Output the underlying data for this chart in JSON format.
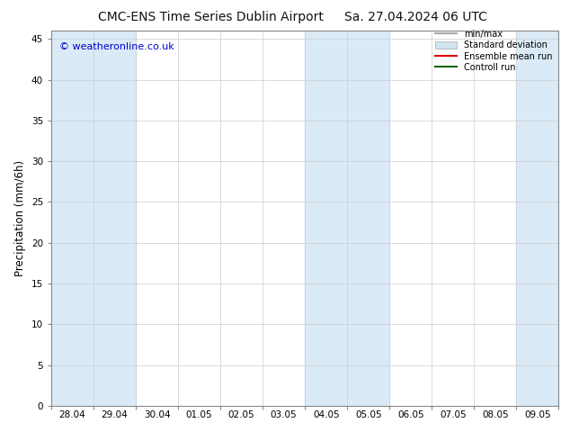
{
  "title_left": "CMC-ENS Time Series Dublin Airport",
  "title_right": "Sa. 27.04.2024 06 UTC",
  "ylabel": "Precipitation (mm/6h)",
  "watermark": "© weatheronline.co.uk",
  "ylim": [
    0,
    46
  ],
  "yticks": [
    0,
    5,
    10,
    15,
    20,
    25,
    30,
    35,
    40,
    45
  ],
  "x_labels": [
    "28.04",
    "29.04",
    "30.04",
    "01.05",
    "02.05",
    "03.05",
    "04.05",
    "05.05",
    "06.05",
    "07.05",
    "08.05",
    "09.05"
  ],
  "n_days": 12,
  "shaded_day_indices": [
    0,
    1,
    6,
    7,
    11
  ],
  "band_color": "#daeaf7",
  "background_color": "#ffffff",
  "legend_items": [
    {
      "label": "min/max",
      "color": "#aaaaaa",
      "type": "line"
    },
    {
      "label": "Standard deviation",
      "color": "#d0e4f0",
      "type": "box"
    },
    {
      "label": "Ensemble mean run",
      "color": "#dd0000",
      "type": "line"
    },
    {
      "label": "Controll run",
      "color": "#006600",
      "type": "line"
    }
  ],
  "title_fontsize": 10,
  "tick_fontsize": 7.5,
  "ylabel_fontsize": 8.5,
  "watermark_color": "#0000cc",
  "watermark_fontsize": 8,
  "spine_color": "#888888",
  "grid_color": "#cccccc"
}
